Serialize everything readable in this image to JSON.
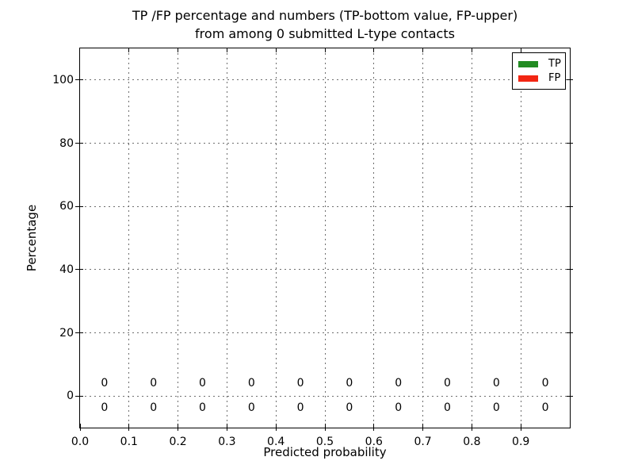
{
  "chart_data": {
    "type": "bar",
    "title_lines": [
      "TP /FP percentage and numbers (TP-bottom value, FP-upper)",
      "from among 0 submitted L-type contacts"
    ],
    "xlabel": "Predicted probability",
    "ylabel": "Percentage",
    "xlim": [
      0.0,
      1.0
    ],
    "ylim": [
      -10,
      110
    ],
    "x_ticks": {
      "values": [
        0.0,
        0.1,
        0.2,
        0.3,
        0.4,
        0.5,
        0.6,
        0.7,
        0.8,
        0.9
      ],
      "labels": [
        "0.0",
        "0.1",
        "0.2",
        "0.3",
        "0.4",
        "0.5",
        "0.6",
        "0.7",
        "0.8",
        "0.9"
      ]
    },
    "y_ticks": {
      "values": [
        0,
        20,
        40,
        60,
        80,
        100
      ],
      "labels": [
        "0",
        "20",
        "40",
        "60",
        "80",
        "100"
      ]
    },
    "grid": {
      "visible": true,
      "style": "dotted",
      "color": "#6e6e6e"
    },
    "legend": {
      "position": "upper right",
      "entries": [
        {
          "label": "TP",
          "color": "#228B22"
        },
        {
          "label": "FP",
          "color": "#F22613"
        }
      ]
    },
    "categories": [
      0.05,
      0.15,
      0.25,
      0.35,
      0.45,
      0.55,
      0.65,
      0.75,
      0.85,
      0.95
    ],
    "series": [
      {
        "name": "TP",
        "label_row": "bottom",
        "color": "#228B22",
        "values": [
          0,
          0,
          0,
          0,
          0,
          0,
          0,
          0,
          0,
          0
        ]
      },
      {
        "name": "FP",
        "label_row": "upper",
        "color": "#F22613",
        "values": [
          0,
          0,
          0,
          0,
          0,
          0,
          0,
          0,
          0,
          0
        ]
      }
    ]
  }
}
